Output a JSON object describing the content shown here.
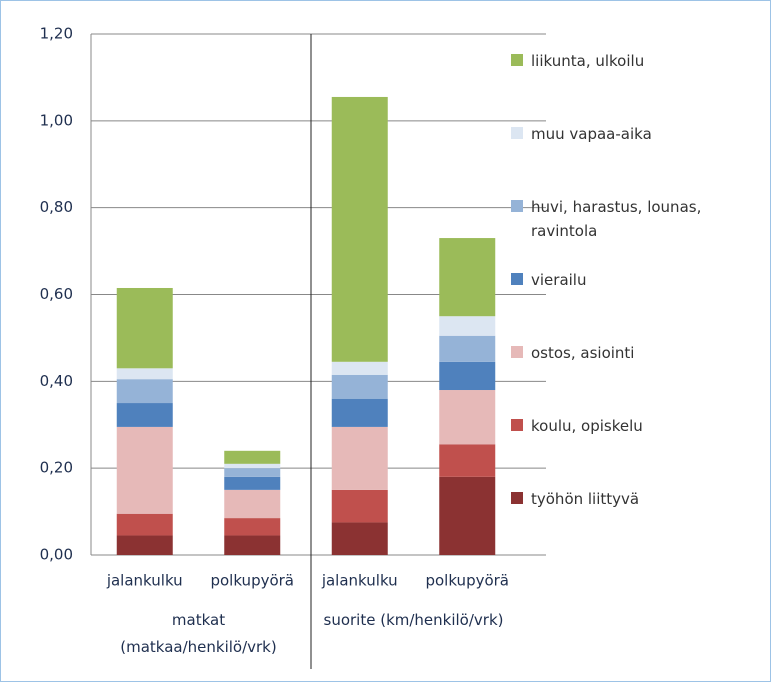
{
  "chart_data": {
    "type": "stacked_bar",
    "categories": [
      "jalankulku",
      "polkupyörä",
      "jalankulku",
      "polkupyörä"
    ],
    "group_labels": [
      "matkat (matkaa/henkilö/vrk)",
      "suorite (km/henkilö/vrk)"
    ],
    "series": [
      {
        "name": "työhön liittyvä",
        "color": "#8b3232",
        "values": [
          0.045,
          0.045,
          0.075,
          0.18
        ]
      },
      {
        "name": "koulu, opiskelu",
        "color": "#c0504d",
        "values": [
          0.05,
          0.04,
          0.075,
          0.075
        ]
      },
      {
        "name": "ostos, asiointi",
        "color": "#e6b9b8",
        "values": [
          0.2,
          0.065,
          0.145,
          0.125
        ]
      },
      {
        "name": "vierailu",
        "color": "#4f81bd",
        "values": [
          0.055,
          0.03,
          0.065,
          0.065
        ]
      },
      {
        "name": "huvi, harastus, lounas, ravintola",
        "color": "#95b3d7",
        "values": [
          0.055,
          0.02,
          0.055,
          0.06
        ]
      },
      {
        "name": "muu vapaa-aika",
        "color": "#dce6f2",
        "values": [
          0.025,
          0.01,
          0.03,
          0.045
        ]
      },
      {
        "name": "liikunta, ulkoilu",
        "color": "#9bbb59",
        "values": [
          0.185,
          0.03,
          0.61,
          0.18
        ]
      }
    ],
    "ylim": [
      0,
      1.2
    ],
    "yticks": [
      {
        "value": 0,
        "label": "0,00"
      },
      {
        "value": 0.2,
        "label": "0,20"
      },
      {
        "value": 0.4,
        "label": "0,40"
      },
      {
        "value": 0.6,
        "label": "0,60"
      },
      {
        "value": 0.8,
        "label": "0,80"
      },
      {
        "value": 1.0,
        "label": "1,00"
      },
      {
        "value": 1.2,
        "label": "1,20"
      }
    ],
    "grid": true
  }
}
